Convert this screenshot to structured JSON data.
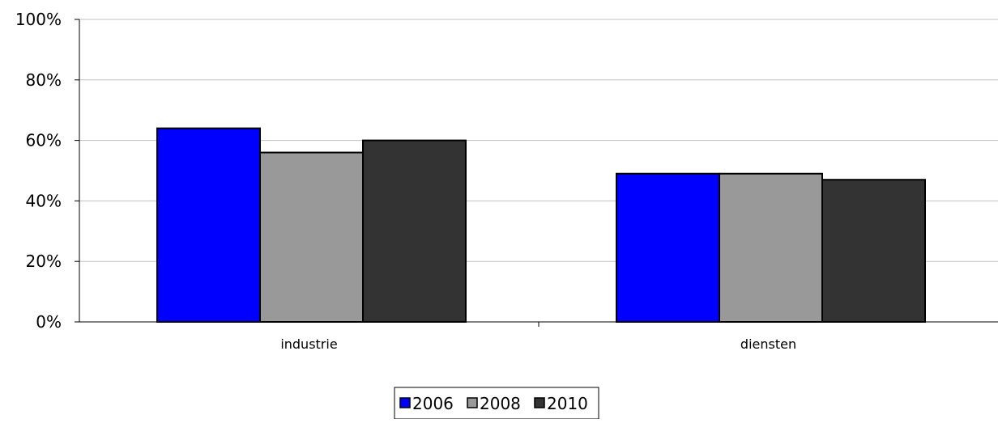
{
  "chart_data": {
    "type": "bar",
    "categories": [
      "industrie",
      "diensten"
    ],
    "series": [
      {
        "name": "2006",
        "values": [
          64,
          49
        ],
        "color": "#0000ff"
      },
      {
        "name": "2008",
        "values": [
          56,
          49
        ],
        "color": "#999999"
      },
      {
        "name": "2010",
        "values": [
          60,
          47
        ],
        "color": "#333333"
      }
    ],
    "yticks": [
      "0%",
      "20%",
      "40%",
      "60%",
      "80%",
      "100%"
    ],
    "ylim": [
      0,
      100
    ],
    "grid": true,
    "legend": "bottom-center",
    "title": "",
    "xlabel": "",
    "ylabel": ""
  }
}
